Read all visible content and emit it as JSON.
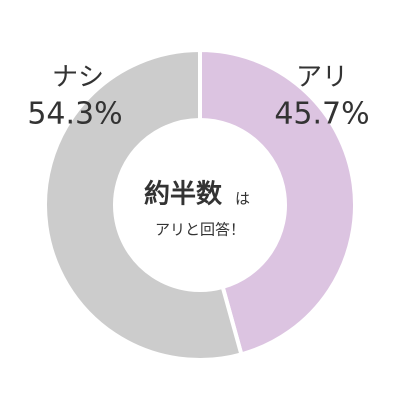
{
  "chart_data": {
    "type": "donut",
    "categories": [
      "アリ",
      "ナシ"
    ],
    "values": [
      45.7,
      54.3
    ],
    "value_labels": [
      "45.7%",
      "54.3%"
    ],
    "colors": [
      "#dcc4e1",
      "#cccccc"
    ],
    "center_highlight": "約半数",
    "center_suffix": "は",
    "center_text": "アリと回答！",
    "highlight_color": "#c79ad0"
  }
}
